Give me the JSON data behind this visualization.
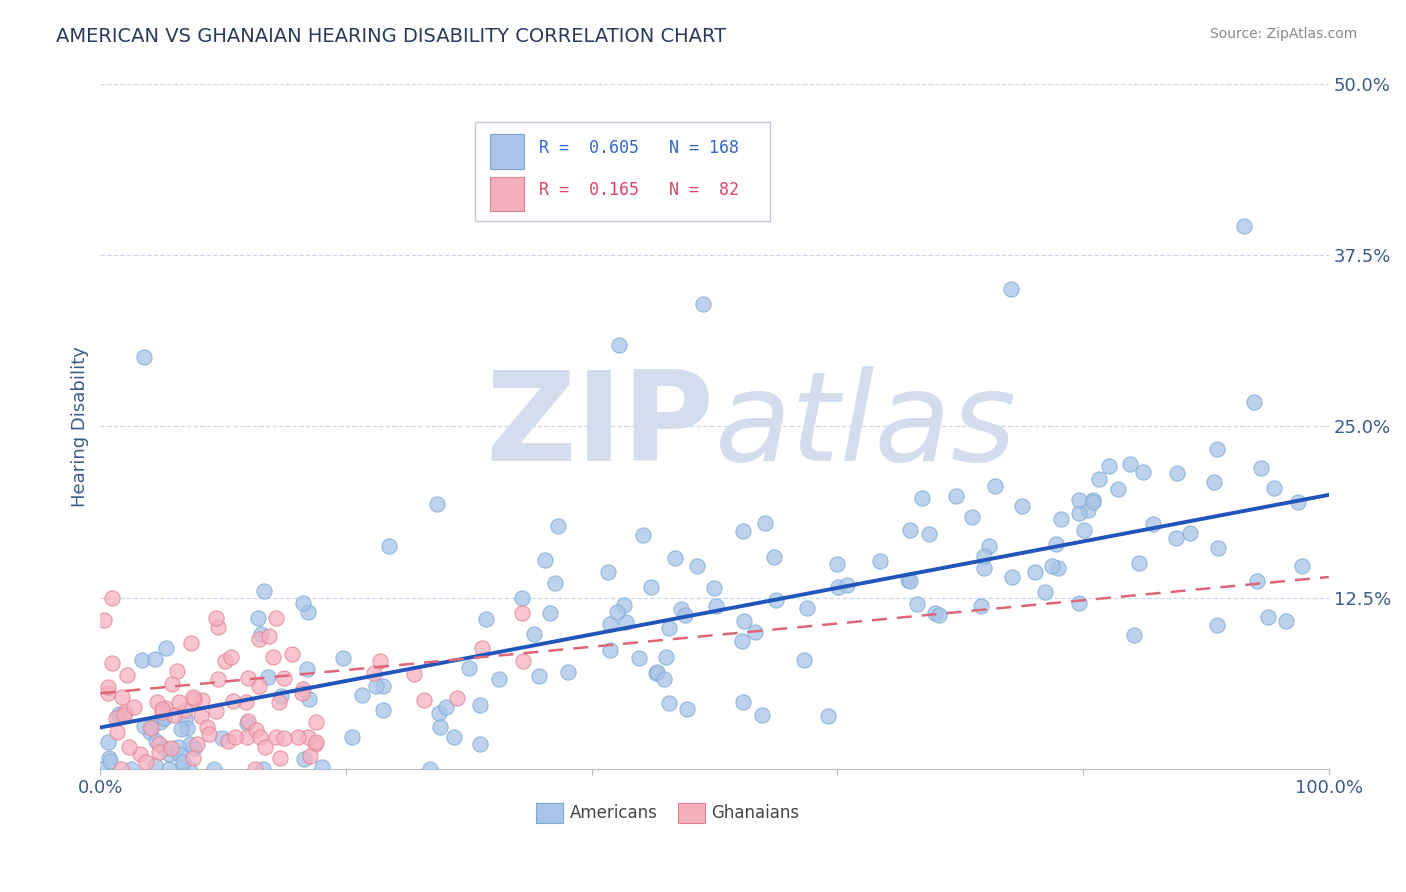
{
  "title": "AMERICAN VS GHANAIAN HEARING DISABILITY CORRELATION CHART",
  "source": "Source: ZipAtlas.com",
  "ylabel": "Hearing Disability",
  "american_R": 0.605,
  "american_N": 168,
  "ghanaian_R": 0.165,
  "ghanaian_N": 82,
  "xlim": [
    0.0,
    1.0
  ],
  "ylim": [
    0.0,
    0.5
  ],
  "yticks": [
    0.0,
    0.125,
    0.25,
    0.375,
    0.5
  ],
  "ytick_labels": [
    "",
    "12.5%",
    "25.0%",
    "37.5%",
    "50.0%"
  ],
  "xtick_pos": [
    0.0,
    0.2,
    0.4,
    0.6,
    0.8,
    1.0
  ],
  "xtick_labels": [
    "0.0%",
    "",
    "",
    "",
    "",
    "100.0%"
  ],
  "american_color": "#a8c4e8",
  "american_edge_color": "#7aaad4",
  "american_line_color": "#2255bb",
  "ghanaian_color": "#f5b0c0",
  "ghanaian_edge_color": "#e08090",
  "ghanaian_line_color": "#dd6677",
  "background_color": "#ffffff",
  "title_color": "#2a3a5a",
  "title_fontsize": 14,
  "watermark_color": "#d4dded",
  "legend_color_am": "#3366cc",
  "legend_color_gh": "#dd4466",
  "am_line_start_y": 0.03,
  "am_line_end_y": 0.2,
  "gh_line_start_y": 0.055,
  "gh_line_end_y": 0.14
}
